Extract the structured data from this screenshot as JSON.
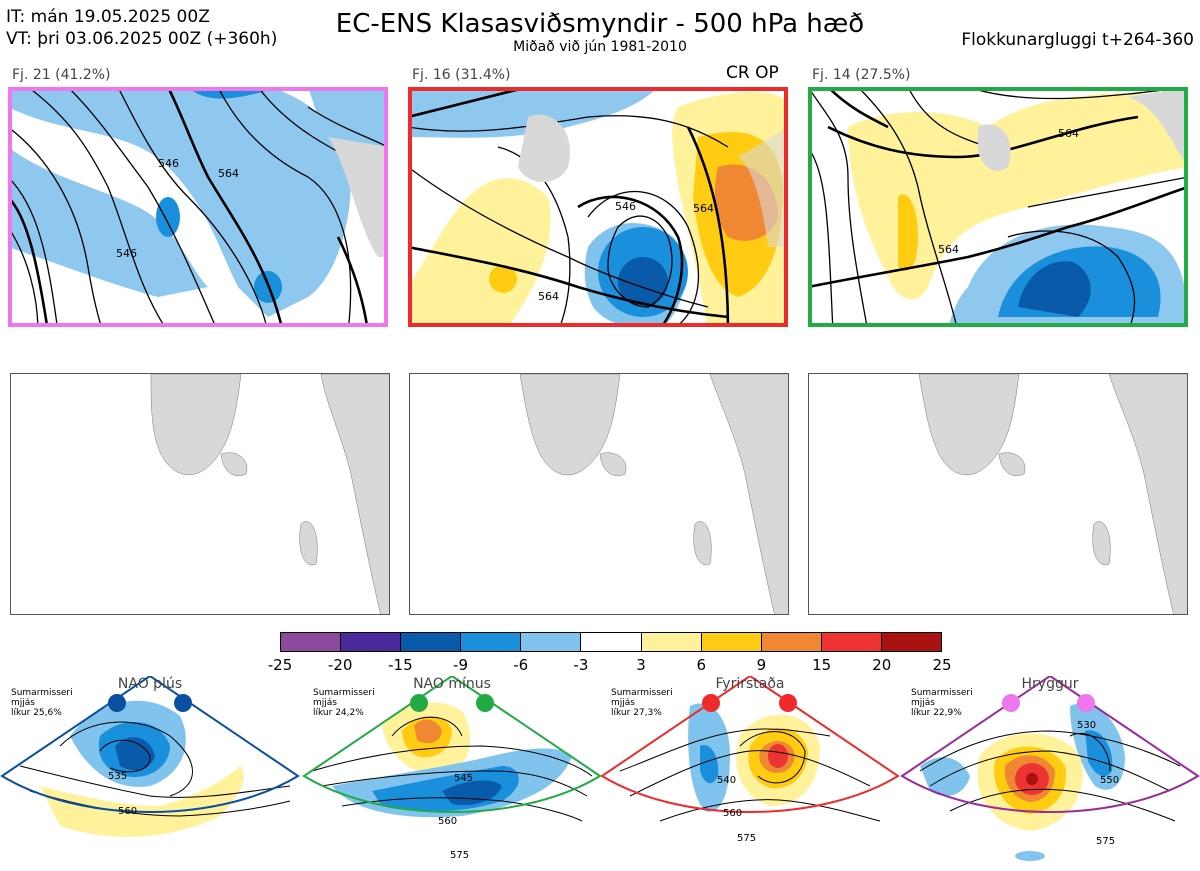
{
  "header": {
    "it_line": "IT: mán 19.05.2025 00Z",
    "vt_line": "VT: þri 03.06.2025 00Z  (+360h)",
    "title": "EC-ENS Klasasviðsmyndir - 500 hPa hæð",
    "subtitle": "Miðað við jún 1981-2010",
    "window": "Flokkunargluggi t+264-360"
  },
  "panels": [
    {
      "label": "Fj. 21 (41.2%)",
      "border_color": "#ee77ee",
      "contours": [
        "546",
        "564",
        "546"
      ]
    },
    {
      "label": "Fj. 16 (31.4%)",
      "border_color": "#ee2a2a",
      "contours": [
        "546",
        "564",
        "564"
      ],
      "tag": "CR OP"
    },
    {
      "label": "Fj. 14 (27.5%)",
      "border_color": "#22aa44",
      "contours": [
        "564",
        "564"
      ]
    }
  ],
  "colorbar": {
    "ticks": [
      "-25",
      "-20",
      "-15",
      "-9",
      "-6",
      "-3",
      "3",
      "6",
      "9",
      "15",
      "20",
      "25"
    ],
    "colors": [
      "#8b4a9b",
      "#4a2a9a",
      "#0a5aaa",
      "#1a90dd",
      "#80c4ee",
      "#ffffff",
      "#fff29a",
      "#ffcc11",
      "#f08833",
      "#ee3333",
      "#aa1111"
    ]
  },
  "regimes": [
    {
      "name": "NAO plús",
      "note": [
        "Sumarmisseri",
        "mjjás",
        "líkur 25,6%"
      ],
      "color": "#0b4fa0",
      "labels": [
        "535",
        "560"
      ]
    },
    {
      "name": "NAO mínus",
      "note": [
        "Sumarmisseri",
        "mjjás",
        "líkur 24,2%"
      ],
      "color": "#22aa44",
      "labels": [
        "545",
        "560",
        "575"
      ]
    },
    {
      "name": "Fyrirstaða",
      "note": [
        "Sumarmisseri",
        "mjjás",
        "líkur 27,3%"
      ],
      "color": "#ee2a2a",
      "labels": [
        "540",
        "560",
        "575"
      ]
    },
    {
      "name": "Hryggur",
      "note": [
        "Sumarmisseri",
        "mjjás",
        "líkur 22,9%"
      ],
      "color": "#ee77ee",
      "labels": [
        "530",
        "550",
        "575"
      ]
    }
  ]
}
